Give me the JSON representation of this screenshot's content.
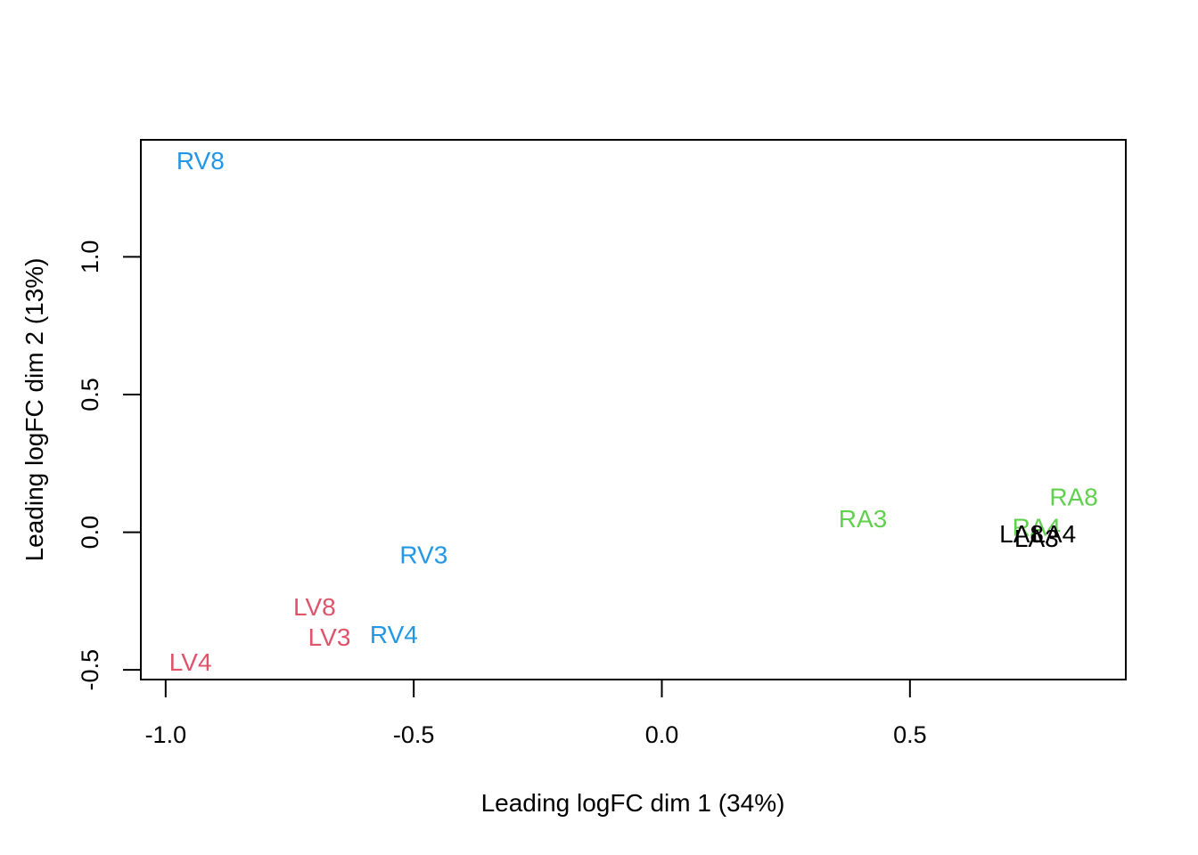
{
  "chart_data": {
    "type": "scatter",
    "title": "",
    "xlabel": "Leading logFC dim 1 (34%)",
    "ylabel": "Leading logFC dim 2 (13%)",
    "xlim": [
      -1.05,
      0.935
    ],
    "ylim": [
      -0.535,
      1.425
    ],
    "x_ticks": [
      -1.0,
      -0.5,
      0.0,
      0.5
    ],
    "x_tick_labels": [
      "-1.0",
      "-0.5",
      "0.0",
      "0.5"
    ],
    "y_ticks": [
      -0.5,
      0.0,
      0.5,
      1.0
    ],
    "y_tick_labels": [
      "-0.5",
      "0.0",
      "0.5",
      "1.0"
    ],
    "grid": false,
    "legend": "none",
    "colors": {
      "LA": "#000000",
      "LV": "#DF536B",
      "RA": "#61D04F",
      "RV": "#2297E6"
    },
    "points": [
      {
        "label": "RV8",
        "group": "RV",
        "x": -0.93,
        "y": 1.35
      },
      {
        "label": "RV3",
        "group": "RV",
        "x": -0.48,
        "y": -0.08
      },
      {
        "label": "RV4",
        "group": "RV",
        "x": -0.54,
        "y": -0.37
      },
      {
        "label": "LV8",
        "group": "LV",
        "x": -0.7,
        "y": -0.27
      },
      {
        "label": "LV3",
        "group": "LV",
        "x": -0.67,
        "y": -0.38
      },
      {
        "label": "LV4",
        "group": "LV",
        "x": -0.95,
        "y": -0.47
      },
      {
        "label": "RA3",
        "group": "RA",
        "x": 0.405,
        "y": 0.05
      },
      {
        "label": "RA8",
        "group": "RA",
        "x": 0.83,
        "y": 0.13
      },
      {
        "label": "RA4",
        "group": "RA",
        "x": 0.755,
        "y": 0.02
      },
      {
        "label": "LA8",
        "group": "LA",
        "x": 0.725,
        "y": -0.005
      },
      {
        "label": "LA4",
        "group": "LA",
        "x": 0.79,
        "y": -0.005
      },
      {
        "label": "LA3",
        "group": "LA",
        "x": 0.755,
        "y": -0.02
      }
    ]
  }
}
